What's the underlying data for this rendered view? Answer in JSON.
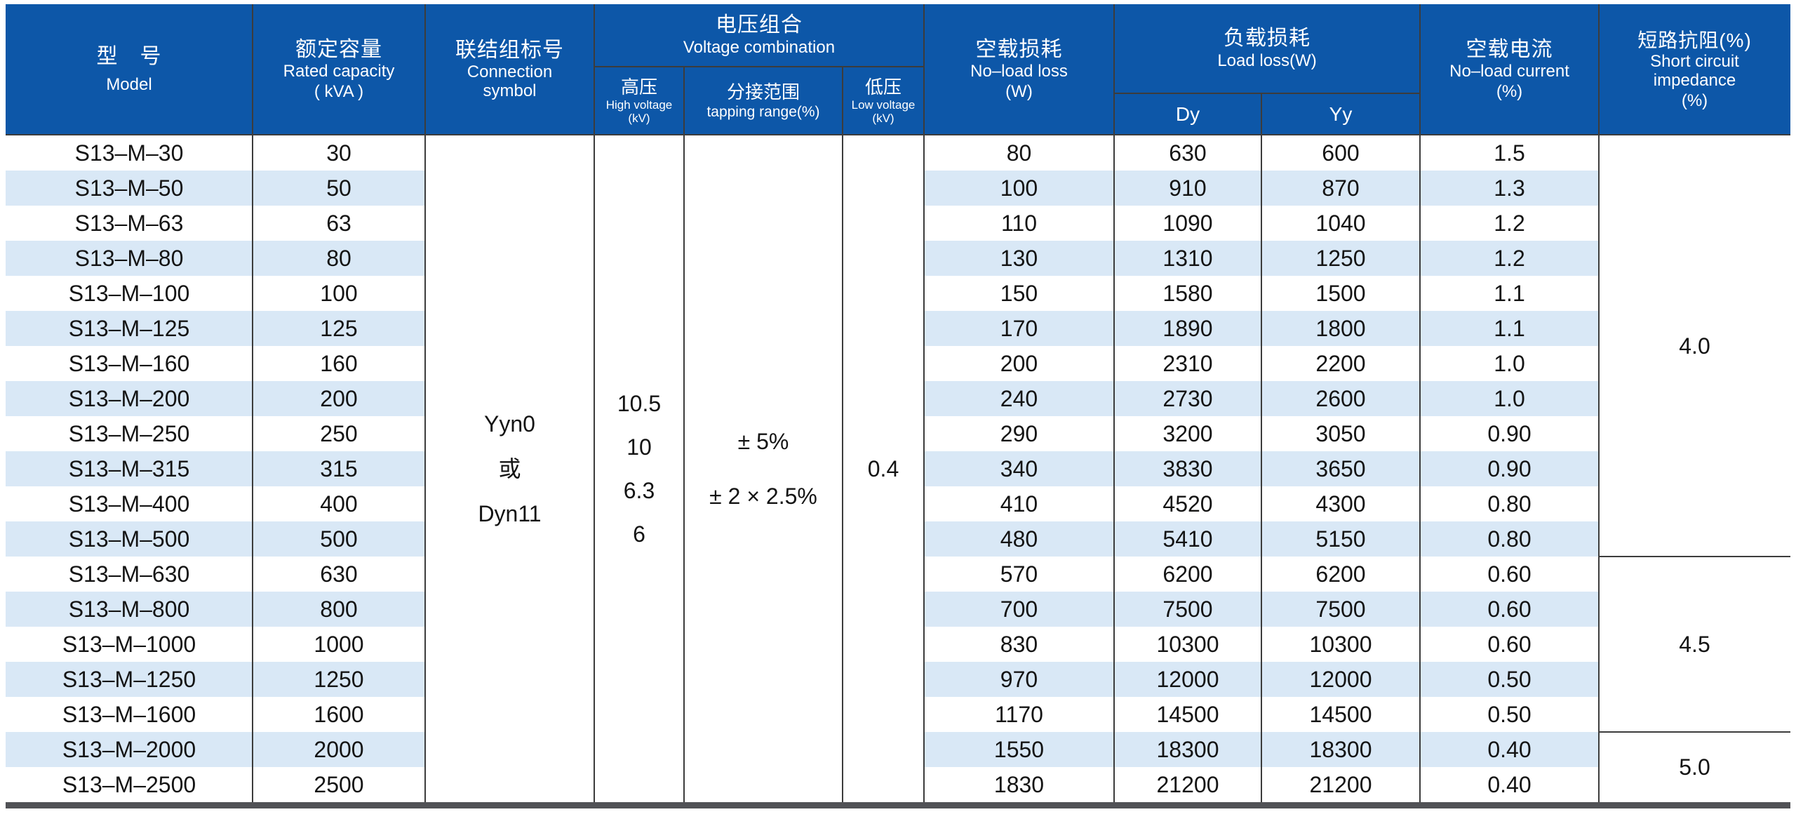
{
  "table": {
    "header": {
      "model_zh": "型　号",
      "model_en": "Model",
      "capacity_zh": "额定容量",
      "capacity_en": "Rated capacity",
      "capacity_unit": "( kVA )",
      "connection_zh": "联结组标号",
      "connection_en": "Connection symbol",
      "voltage_group_zh": "电压组合",
      "voltage_group_en": "Voltage combination",
      "hv_zh": "高压",
      "hv_en": "High voltage",
      "hv_unit": "(kV)",
      "tapping_zh": "分接范围",
      "tapping_en": "tapping range(%)",
      "lv_zh": "低压",
      "lv_en": "Low voltage",
      "lv_unit": "(kV)",
      "noload_loss_zh": "空载损耗",
      "noload_loss_en": "No–load loss",
      "noload_loss_unit": "(W)",
      "load_loss_zh": "负载损耗",
      "load_loss_en": "Load loss(W)",
      "dy_label": "Dy",
      "yy_label": "Yy",
      "noload_current_zh": "空载电流",
      "noload_current_en": "No–load current",
      "noload_current_unit": "(%)",
      "impedance_zh": "短路抗阻(%)",
      "impedance_en": "Short circuit impedance",
      "impedance_unit": "(%)"
    },
    "merged": {
      "connection_lines": [
        "Yyn0",
        "或",
        "Dyn11"
      ],
      "high_voltage_lines": [
        "10.5",
        "10",
        "6.3",
        "6"
      ],
      "tapping_lines": [
        "± 5%",
        "± 2 × 2.5%"
      ],
      "low_voltage": "0.4",
      "impedance_groups": [
        {
          "value": "4.0",
          "row_start": 0,
          "row_span": 12
        },
        {
          "value": "4.5",
          "row_start": 12,
          "row_span": 5
        },
        {
          "value": "5.0",
          "row_start": 17,
          "row_span": 2
        }
      ]
    },
    "rows": [
      {
        "model": "S13–M–30",
        "capacity": "30",
        "noload_loss": "80",
        "dy": "630",
        "yy": "600",
        "noload_current": "1.5"
      },
      {
        "model": "S13–M–50",
        "capacity": "50",
        "noload_loss": "100",
        "dy": "910",
        "yy": "870",
        "noload_current": "1.3"
      },
      {
        "model": "S13–M–63",
        "capacity": "63",
        "noload_loss": "110",
        "dy": "1090",
        "yy": "1040",
        "noload_current": "1.2"
      },
      {
        "model": "S13–M–80",
        "capacity": "80",
        "noload_loss": "130",
        "dy": "1310",
        "yy": "1250",
        "noload_current": "1.2"
      },
      {
        "model": "S13–M–100",
        "capacity": "100",
        "noload_loss": "150",
        "dy": "1580",
        "yy": "1500",
        "noload_current": "1.1"
      },
      {
        "model": "S13–M–125",
        "capacity": "125",
        "noload_loss": "170",
        "dy": "1890",
        "yy": "1800",
        "noload_current": "1.1"
      },
      {
        "model": "S13–M–160",
        "capacity": "160",
        "noload_loss": "200",
        "dy": "2310",
        "yy": "2200",
        "noload_current": "1.0"
      },
      {
        "model": "S13–M–200",
        "capacity": "200",
        "noload_loss": "240",
        "dy": "2730",
        "yy": "2600",
        "noload_current": "1.0"
      },
      {
        "model": "S13–M–250",
        "capacity": "250",
        "noload_loss": "290",
        "dy": "3200",
        "yy": "3050",
        "noload_current": "0.90"
      },
      {
        "model": "S13–M–315",
        "capacity": "315",
        "noload_loss": "340",
        "dy": "3830",
        "yy": "3650",
        "noload_current": "0.90"
      },
      {
        "model": "S13–M–400",
        "capacity": "400",
        "noload_loss": "410",
        "dy": "4520",
        "yy": "4300",
        "noload_current": "0.80"
      },
      {
        "model": "S13–M–500",
        "capacity": "500",
        "noload_loss": "480",
        "dy": "5410",
        "yy": "5150",
        "noload_current": "0.80"
      },
      {
        "model": "S13–M–630",
        "capacity": "630",
        "noload_loss": "570",
        "dy": "6200",
        "yy": "6200",
        "noload_current": "0.60"
      },
      {
        "model": "S13–M–800",
        "capacity": "800",
        "noload_loss": "700",
        "dy": "7500",
        "yy": "7500",
        "noload_current": "0.60"
      },
      {
        "model": "S13–M–1000",
        "capacity": "1000",
        "noload_loss": "830",
        "dy": "10300",
        "yy": "10300",
        "noload_current": "0.60"
      },
      {
        "model": "S13–M–1250",
        "capacity": "1250",
        "noload_loss": "970",
        "dy": "12000",
        "yy": "12000",
        "noload_current": "0.50"
      },
      {
        "model": "S13–M–1600",
        "capacity": "1600",
        "noload_loss": "1170",
        "dy": "14500",
        "yy": "14500",
        "noload_current": "0.50"
      },
      {
        "model": "S13–M–2000",
        "capacity": "2000",
        "noload_loss": "1550",
        "dy": "18300",
        "yy": "18300",
        "noload_current": "0.40"
      },
      {
        "model": "S13–M–2500",
        "capacity": "2500",
        "noload_loss": "1830",
        "dy": "21200",
        "yy": "21200",
        "noload_current": "0.40"
      }
    ]
  },
  "colors": {
    "header_blue": "#0d57a8",
    "stripe_blue": "#d9e8f6",
    "gridline": "#3c3c3c",
    "bottom_bar": "#515256"
  }
}
